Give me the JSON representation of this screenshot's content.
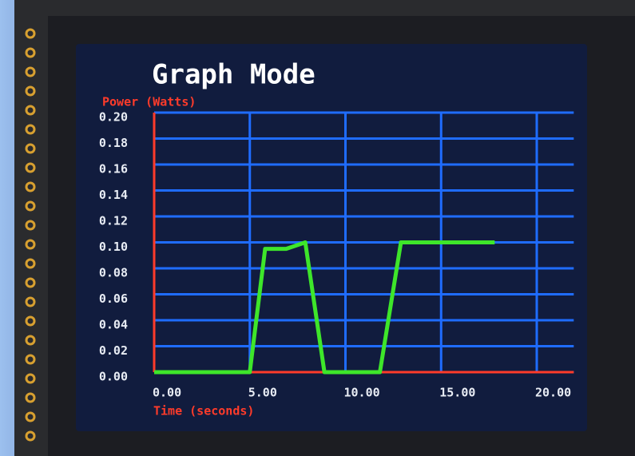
{
  "chart_data": {
    "type": "line",
    "title": "Graph Mode",
    "y_label": "Power (Watts)",
    "x_label": "Time (seconds)",
    "x": [
      0,
      5.0,
      5.8,
      6.9,
      7.9,
      8.9,
      11.8,
      12.9,
      17.8
    ],
    "values": [
      0,
      0,
      0.095,
      0.095,
      0.1,
      0,
      0,
      0.1,
      0.1
    ],
    "color": "#3ee62a",
    "xlim": [
      0,
      21.6
    ],
    "xticks": [
      {
        "value": 0,
        "label": "0.00"
      },
      {
        "value": 5,
        "label": "5.00"
      },
      {
        "value": 10,
        "label": "10.00"
      },
      {
        "value": 15,
        "label": "15.00"
      },
      {
        "value": 20,
        "label": "20.00"
      }
    ],
    "ylim": [
      0,
      0.2
    ],
    "yticks": [
      {
        "value": 0,
        "label": "0.00"
      },
      0.02,
      0.04,
      0.06,
      0.08,
      {
        "value": 0.1,
        "label": "0.10"
      },
      0.12,
      0.14,
      0.16,
      0.18,
      {
        "value": 0.2,
        "label": "0.20"
      }
    ],
    "grid": true
  }
}
